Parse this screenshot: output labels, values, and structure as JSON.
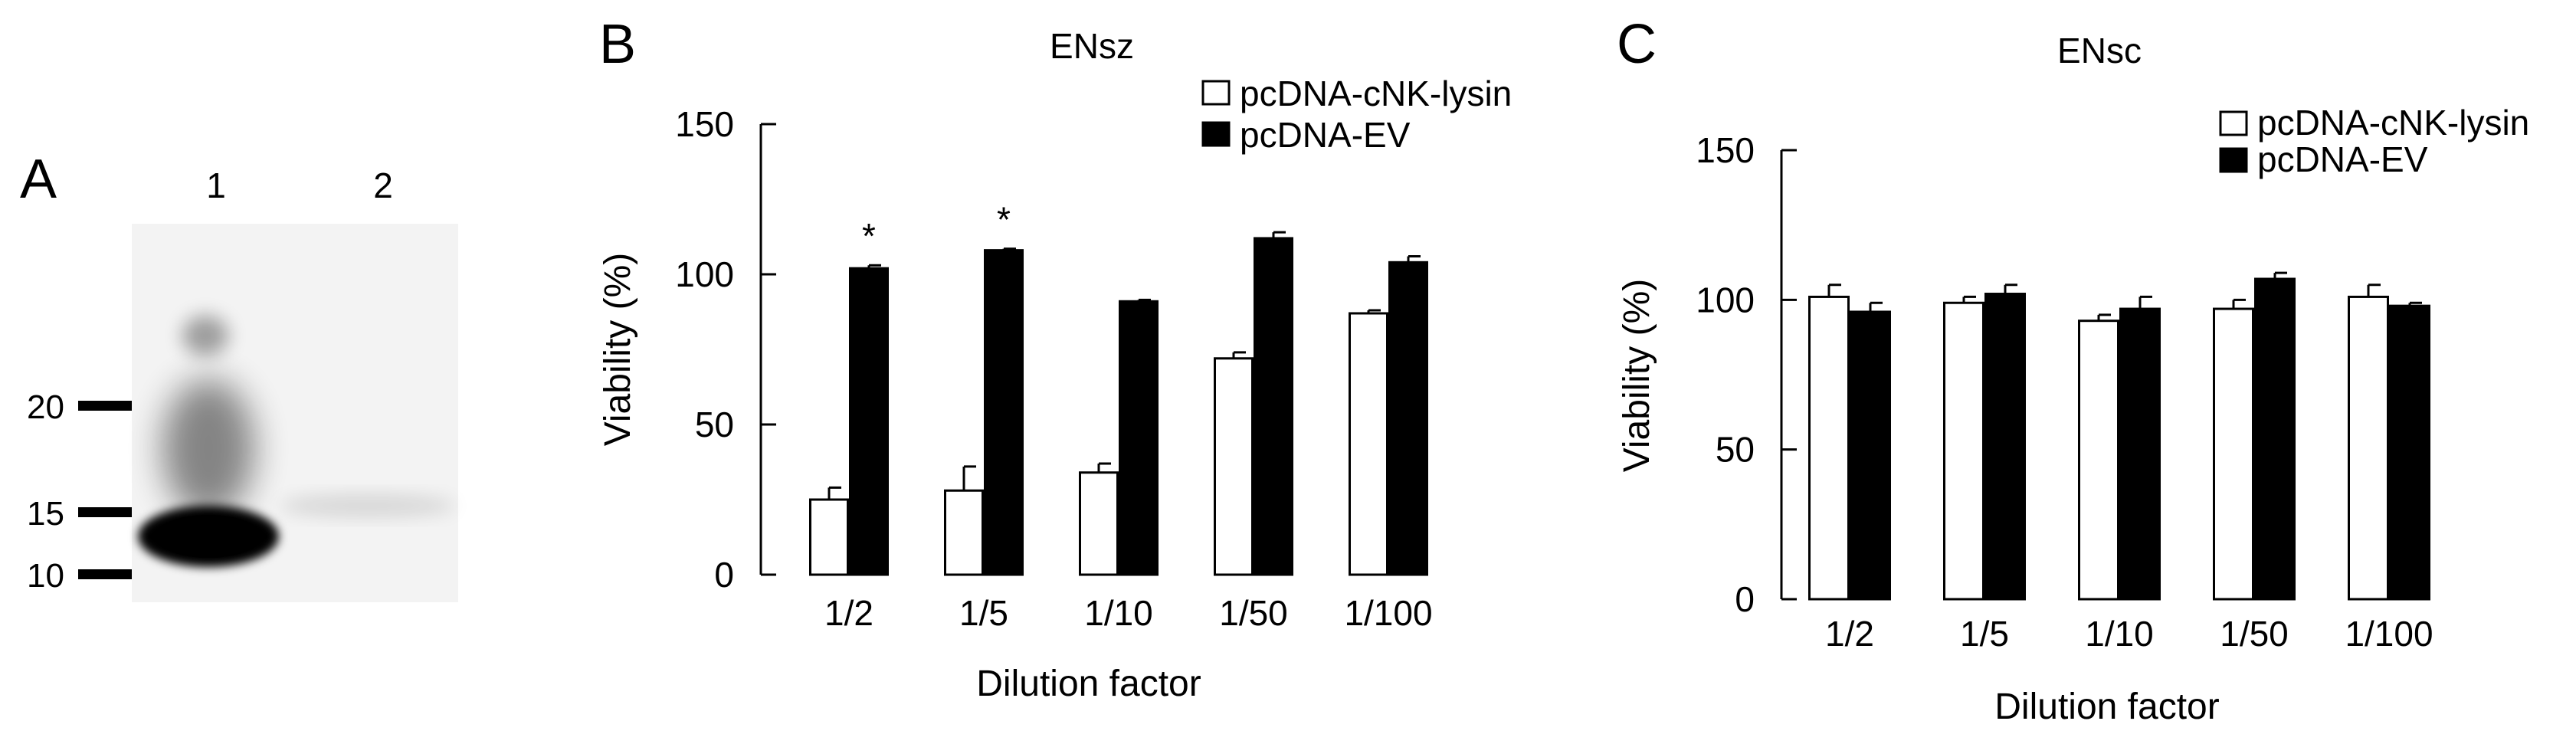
{
  "panels": {
    "A": {
      "letter": "A",
      "lanes": [
        "1",
        "2"
      ],
      "markers": [
        {
          "label": "20",
          "value": 20
        },
        {
          "label": "15",
          "value": 15
        },
        {
          "label": "10",
          "value": 10
        }
      ]
    },
    "B": {
      "letter": "B"
    },
    "C": {
      "letter": "C"
    }
  },
  "colors": {
    "cnk_bar": "#ffffff",
    "ev_bar": "#000000",
    "axis": "#000000",
    "gel_background": "#f3f3f3",
    "band": "#000000"
  },
  "chart_data": [
    {
      "type": "bar",
      "panel": "B",
      "title": "ENsz",
      "xlabel": "Dilution factor",
      "ylabel": "Viability (%)",
      "ylim": [
        0,
        150
      ],
      "yticks": [
        0,
        50,
        100,
        150
      ],
      "categories": [
        "1/2",
        "1/5",
        "1/10",
        "1/50",
        "1/100"
      ],
      "series": [
        {
          "name": "pcDNA-cNK-lysin",
          "values": [
            25,
            28,
            34,
            72,
            87
          ],
          "errors": [
            4,
            8,
            3,
            2,
            1
          ],
          "color": "#ffffff"
        },
        {
          "name": "pcDNA-EV",
          "values": [
            102,
            108,
            91,
            112,
            104
          ],
          "errors": [
            1,
            0.5,
            0.5,
            2,
            2
          ],
          "color": "#000000"
        }
      ],
      "annotations": [
        {
          "category": "1/2",
          "text": "*"
        },
        {
          "category": "1/5",
          "text": "*"
        }
      ],
      "legend": "top-right",
      "grid": false
    },
    {
      "type": "bar",
      "panel": "C",
      "title": "ENsc",
      "xlabel": "Dilution factor",
      "ylabel": "Viability (%)",
      "ylim": [
        0,
        150
      ],
      "yticks": [
        0,
        50,
        100,
        150
      ],
      "categories": [
        "1/2",
        "1/5",
        "1/10",
        "1/50",
        "1/100"
      ],
      "series": [
        {
          "name": "pcDNA-cNK-lysin",
          "values": [
            101,
            99,
            93,
            97,
            101
          ],
          "errors": [
            4,
            2,
            2,
            3,
            4
          ],
          "color": "#ffffff"
        },
        {
          "name": "pcDNA-EV",
          "values": [
            96,
            102,
            97,
            107,
            98
          ],
          "errors": [
            3,
            3,
            4,
            2,
            1
          ],
          "color": "#000000"
        }
      ],
      "annotations": [],
      "legend": "top-right",
      "grid": false
    }
  ]
}
